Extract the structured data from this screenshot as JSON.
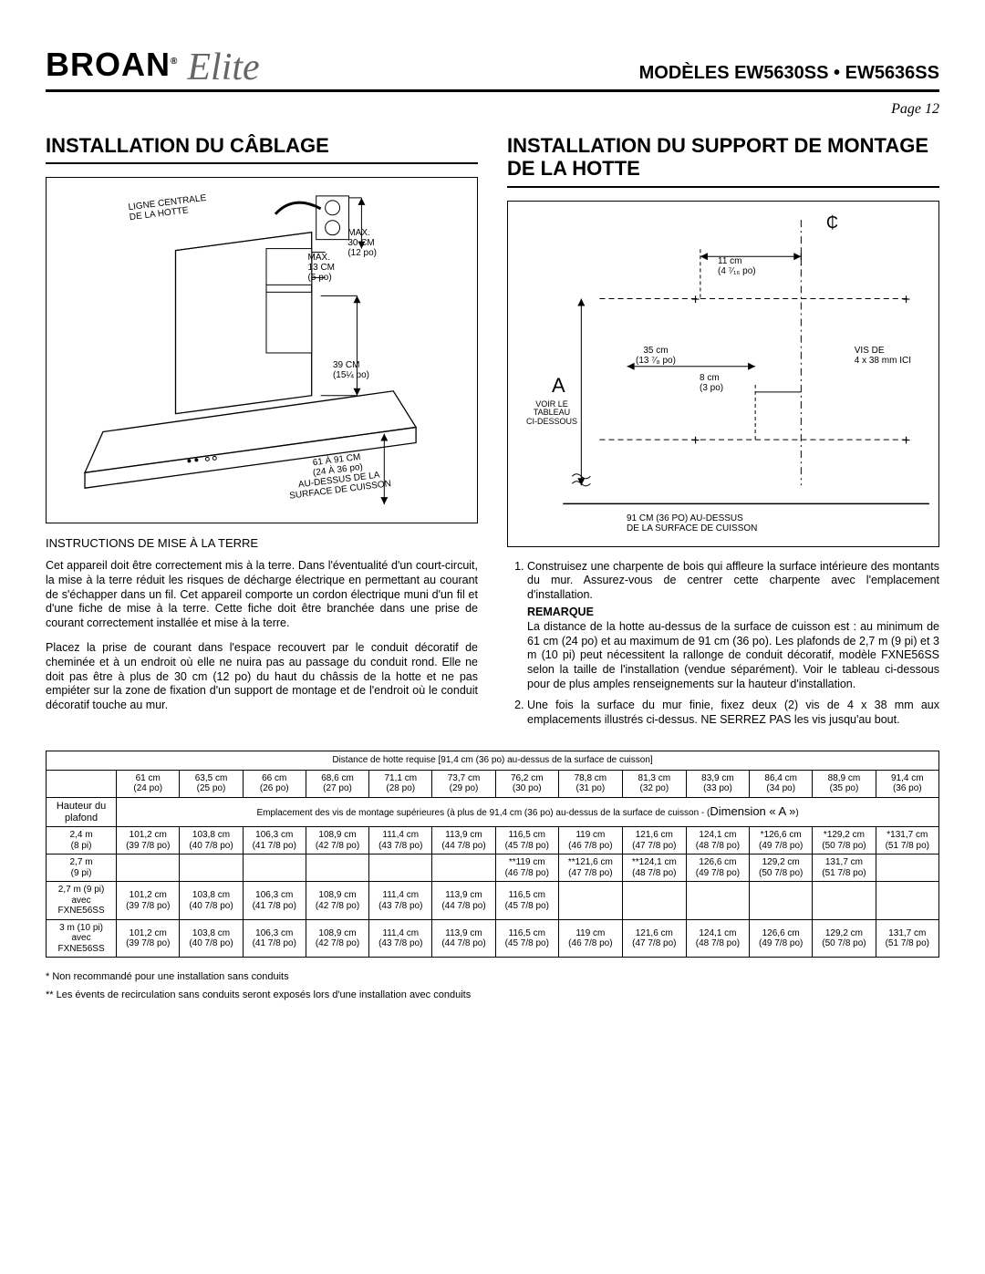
{
  "header": {
    "brand": "BROAN",
    "brand_reg": "®",
    "subbrand": "Elite",
    "models_label": "MODÈLES  EW5630SS • EW5636SS",
    "page_label": "Page 12"
  },
  "left": {
    "title": "INSTALLATION DU CÂBLAGE",
    "fig": {
      "l1a": "LIGNE CENTRALE",
      "l1b": "DE LA HOTTE",
      "l2a": "MAX.",
      "l2b": "30 CM",
      "l2c": "(12 po)",
      "l3a": "MAX.",
      "l3b": "13 CM",
      "l3c": "(5 po)",
      "l4a": "39 CM",
      "l4b": "(15¼ po)",
      "l5a": "61 À 91 CM",
      "l5b": "(24 À 36 po)",
      "l5c": "AU-DESSUS DE LA",
      "l5d": "SURFACE DE CUISSON"
    },
    "subhead": "INSTRUCTIONS DE MISE À LA TERRE",
    "p1": "Cet appareil doit être correctement mis à la terre. Dans l'éventualité d'un court-circuit, la mise à la terre réduit les risques de décharge électrique en permettant au courant de s'échapper dans un fil. Cet appareil comporte un cordon électrique muni d'un fil et d'une fiche de mise à la terre. Cette fiche doit être branchée dans une prise de courant correctement installée et mise à la terre.",
    "p2": "Placez la prise de courant dans l'espace recouvert par le conduit décoratif de cheminée et à un endroit où elle ne nuira pas au passage du conduit rond. Elle ne doit pas être à plus de 30 cm (12 po) du haut du châssis de la hotte et ne pas empiéter sur la zone de fixation d'un support de montage et de l'endroit où le conduit décoratif touche au mur."
  },
  "right": {
    "title": "INSTALLATION DU SUPPORT DE MONTAGE DE LA HOTTE",
    "fig": {
      "a": "A",
      "voir1": "VOIR LE",
      "voir2": "TABLEAU",
      "voir3": "CI-DESSOUS",
      "d11a": "11 cm",
      "d11b": "(4 ⁷⁄₁₆ po)",
      "d35a": "35 cm",
      "d35b": "(13 ⁷⁄₈ po)",
      "d8a": "8 cm",
      "d8b": "(3 po)",
      "vis1": "VIS DE",
      "vis2": "4 x 38 mm ICI",
      "d91a": "91 CM (36 PO) AU-DESSUS",
      "d91b": "DE LA SURFACE DE CUISSON",
      "cl": "₵"
    },
    "li1": "Construisez une charpente de bois qui affleure la surface intérieure des montants du mur. Assurez-vous de centrer cette charpente avec l'emplacement d'installation.",
    "remarque": "REMARQUE",
    "remarque_text": "La distance de la hotte au-dessus de la surface de cuisson est : au minimum de 61 cm (24 po) et au maximum de 91 cm (36 po). Les plafonds de 2,7 m (9 pi) et 3 m (10 pi) peut nécessitent la rallonge de conduit décoratif, modèle FXNE56SS selon la taille de l'installation (vendue séparément). Voir le tableau ci-dessous pour de plus amples renseignements sur la hauteur d'installation.",
    "li2": "Une fois la surface du mur finie, fixez deux (2) vis de 4 x 38 mm aux emplacements illustrés ci-dessus. NE SERREZ PAS les vis jusqu'au bout."
  },
  "table": {
    "title": "Distance de hotte requise [91,4 cm (36 po) au-dessus de la surface de cuisson]",
    "col_headers": [
      {
        "a": "61 cm",
        "b": "(24 po)"
      },
      {
        "a": "63,5 cm",
        "b": "(25 po)"
      },
      {
        "a": "66 cm",
        "b": "(26 po)"
      },
      {
        "a": "68,6 cm",
        "b": "(27 po)"
      },
      {
        "a": "71,1 cm",
        "b": "(28 po)"
      },
      {
        "a": "73,7 cm",
        "b": "(29 po)"
      },
      {
        "a": "76,2 cm",
        "b": "(30 po)"
      },
      {
        "a": "78,8 cm",
        "b": "(31 po)"
      },
      {
        "a": "81,3 cm",
        "b": "(32 po)"
      },
      {
        "a": "83,9 cm",
        "b": "(33 po)"
      },
      {
        "a": "86,4 cm",
        "b": "(34 po)"
      },
      {
        "a": "88,9 cm",
        "b": "(35 po)"
      },
      {
        "a": "91,4 cm",
        "b": "(36 po)"
      }
    ],
    "row_label_1a": "Hauteur du",
    "row_label_1b": "plafond",
    "dim_text_a": "Emplacement des vis de montage supérieures (à plus de 91,4 cm (36 po) au-dessus de la surface de cuisson - (",
    "dim_text_b": "Dimension « A »",
    "dim_text_c": ")",
    "rows": [
      {
        "label_a": "2,4 m",
        "label_b": "(8 pi)",
        "cells": [
          {
            "a": "101,2 cm",
            "b": "(39 7/8 po)"
          },
          {
            "a": "103,8 cm",
            "b": "(40 7/8 po)"
          },
          {
            "a": "106,3 cm",
            "b": "(41 7/8 po)"
          },
          {
            "a": "108,9 cm",
            "b": "(42 7/8 po)"
          },
          {
            "a": "111,4 cm",
            "b": "(43 7/8 po)"
          },
          {
            "a": "113,9 cm",
            "b": "(44 7/8 po)"
          },
          {
            "a": "116,5 cm",
            "b": "(45 7/8 po)"
          },
          {
            "a": "119 cm",
            "b": "(46 7/8 po)"
          },
          {
            "a": "121,6 cm",
            "b": "(47 7/8 po)"
          },
          {
            "a": "124,1 cm",
            "b": "(48 7/8 po)"
          },
          {
            "a": "*126,6 cm",
            "b": "(49 7/8 po)"
          },
          {
            "a": "*129,2 cm",
            "b": "(50 7/8 po)"
          },
          {
            "a": "*131,7 cm",
            "b": "(51 7/8 po)"
          }
        ]
      },
      {
        "label_a": "2,7 m",
        "label_b": "(9 pi)",
        "cells": [
          {
            "a": "",
            "b": ""
          },
          {
            "a": "",
            "b": ""
          },
          {
            "a": "",
            "b": ""
          },
          {
            "a": "",
            "b": ""
          },
          {
            "a": "",
            "b": ""
          },
          {
            "a": "",
            "b": ""
          },
          {
            "a": "**119 cm",
            "b": "(46 7/8 po)"
          },
          {
            "a": "**121,6 cm",
            "b": "(47 7/8 po)"
          },
          {
            "a": "**124,1 cm",
            "b": "(48 7/8 po)"
          },
          {
            "a": "126,6 cm",
            "b": "(49 7/8 po)"
          },
          {
            "a": "129,2 cm",
            "b": "(50 7/8 po)"
          },
          {
            "a": "131,7 cm",
            "b": "(51 7/8 po)"
          },
          {
            "a": "",
            "b": ""
          }
        ]
      },
      {
        "label_a": "2,7 m (9 pi)",
        "label_b": "avec",
        "label_c": "FXNE56SS",
        "cells": [
          {
            "a": "101,2 cm",
            "b": "(39 7/8 po)"
          },
          {
            "a": "103,8 cm",
            "b": "(40 7/8 po)"
          },
          {
            "a": "106,3 cm",
            "b": "(41 7/8 po)"
          },
          {
            "a": "108,9 cm",
            "b": "(42 7/8 po)"
          },
          {
            "a": "111,4 cm",
            "b": "(43 7/8 po)"
          },
          {
            "a": "113,9 cm",
            "b": "(44 7/8 po)"
          },
          {
            "a": "116,5 cm",
            "b": "(45 7/8 po)"
          },
          {
            "a": "",
            "b": ""
          },
          {
            "a": "",
            "b": ""
          },
          {
            "a": "",
            "b": ""
          },
          {
            "a": "",
            "b": ""
          },
          {
            "a": "",
            "b": ""
          },
          {
            "a": "",
            "b": ""
          }
        ]
      },
      {
        "label_a": "3 m (10 pi)",
        "label_b": "avec",
        "label_c": "FXNE56SS",
        "cells": [
          {
            "a": "101,2 cm",
            "b": "(39 7/8 po)"
          },
          {
            "a": "103,8 cm",
            "b": "(40 7/8 po)"
          },
          {
            "a": "106,3 cm",
            "b": "(41 7/8 po)"
          },
          {
            "a": "108,9 cm",
            "b": "(42 7/8 po)"
          },
          {
            "a": "111,4 cm",
            "b": "(43 7/8 po)"
          },
          {
            "a": "113,9 cm",
            "b": "(44 7/8 po)"
          },
          {
            "a": "116,5 cm",
            "b": "(45 7/8 po)"
          },
          {
            "a": "119 cm",
            "b": "(46 7/8 po)"
          },
          {
            "a": "121,6 cm",
            "b": "(47 7/8 po)"
          },
          {
            "a": "124,1 cm",
            "b": "(48 7/8 po)"
          },
          {
            "a": "126,6 cm",
            "b": "(49 7/8 po)"
          },
          {
            "a": "129,2 cm",
            "b": "(50 7/8 po)"
          },
          {
            "a": "131,7 cm",
            "b": "(51 7/8 po)"
          }
        ]
      }
    ]
  },
  "footnotes": {
    "f1": "* Non recommandé pour une installation sans conduits",
    "f2": "** Les évents de recirculation sans conduits seront exposés lors d'une installation avec conduits"
  }
}
